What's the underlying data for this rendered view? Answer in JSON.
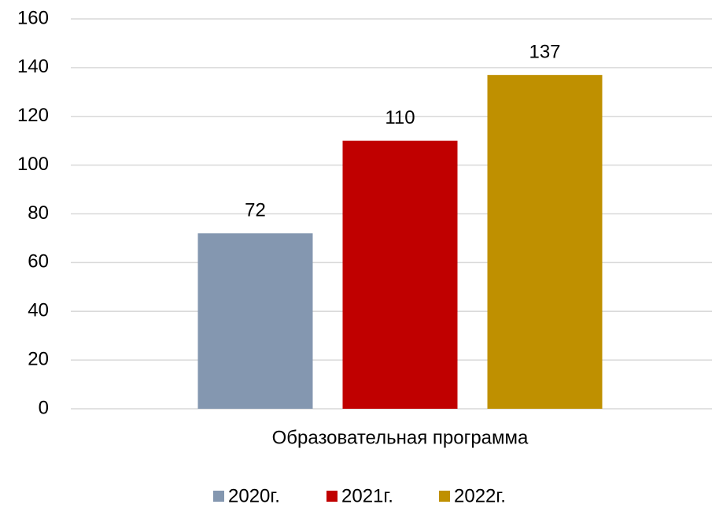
{
  "chart_data": {
    "type": "bar",
    "categories": [
      "Образовательная программа"
    ],
    "series": [
      {
        "name": "2020г.",
        "color": "#8497b0",
        "values": [
          72
        ]
      },
      {
        "name": "2021г.",
        "color": "#c00000",
        "values": [
          110
        ]
      },
      {
        "name": "2022г.",
        "color": "#bf9000",
        "values": [
          137
        ]
      }
    ],
    "ylim": [
      0,
      160
    ],
    "yticks": [
      0,
      20,
      40,
      60,
      80,
      100,
      120,
      140,
      160
    ],
    "grid": true,
    "legend": "bottom",
    "data_labels": true
  }
}
